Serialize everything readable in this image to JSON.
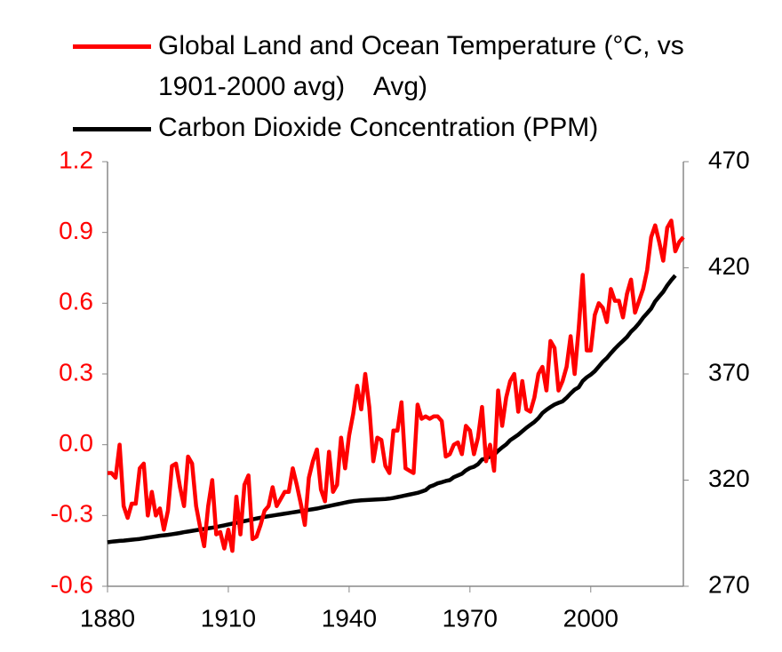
{
  "chart_data": {
    "type": "line",
    "x": [
      1880,
      1881,
      1882,
      1883,
      1884,
      1885,
      1886,
      1887,
      1888,
      1889,
      1890,
      1891,
      1892,
      1893,
      1894,
      1895,
      1896,
      1897,
      1898,
      1899,
      1900,
      1901,
      1902,
      1903,
      1904,
      1905,
      1906,
      1907,
      1908,
      1909,
      1910,
      1911,
      1912,
      1913,
      1914,
      1915,
      1916,
      1917,
      1918,
      1919,
      1920,
      1921,
      1922,
      1923,
      1924,
      1925,
      1926,
      1927,
      1928,
      1929,
      1930,
      1931,
      1932,
      1933,
      1934,
      1935,
      1936,
      1937,
      1938,
      1939,
      1940,
      1941,
      1942,
      1943,
      1944,
      1945,
      1946,
      1947,
      1948,
      1949,
      1950,
      1951,
      1952,
      1953,
      1954,
      1955,
      1956,
      1957,
      1958,
      1959,
      1960,
      1961,
      1962,
      1963,
      1964,
      1965,
      1966,
      1967,
      1968,
      1969,
      1970,
      1971,
      1972,
      1973,
      1974,
      1975,
      1976,
      1977,
      1978,
      1979,
      1980,
      1981,
      1982,
      1983,
      1984,
      1985,
      1986,
      1987,
      1988,
      1989,
      1990,
      1991,
      1992,
      1993,
      1994,
      1995,
      1996,
      1997,
      1998,
      1999,
      2000,
      2001,
      2002,
      2003,
      2004,
      2005,
      2006,
      2007,
      2008,
      2009,
      2010,
      2011,
      2012,
      2013,
      2014,
      2015,
      2016,
      2017,
      2018,
      2019,
      2020,
      2021,
      2022,
      2023
    ],
    "series": [
      {
        "name": "Global Land and Ocean Temperature (°C, vs 1901-2000 avg)    Avg)",
        "color": "#ff0000",
        "axis": "y",
        "values": [
          -0.12,
          -0.12,
          -0.14,
          0.0,
          -0.26,
          -0.31,
          -0.25,
          -0.25,
          -0.1,
          -0.08,
          -0.3,
          -0.2,
          -0.3,
          -0.27,
          -0.36,
          -0.28,
          -0.09,
          -0.08,
          -0.18,
          -0.26,
          -0.05,
          -0.08,
          -0.26,
          -0.35,
          -0.43,
          -0.26,
          -0.15,
          -0.38,
          -0.37,
          -0.44,
          -0.36,
          -0.45,
          -0.22,
          -0.38,
          -0.17,
          -0.13,
          -0.4,
          -0.39,
          -0.34,
          -0.28,
          -0.26,
          -0.18,
          -0.26,
          -0.23,
          -0.2,
          -0.2,
          -0.1,
          -0.17,
          -0.25,
          -0.34,
          -0.14,
          -0.07,
          -0.02,
          -0.19,
          -0.24,
          -0.03,
          -0.2,
          -0.17,
          0.03,
          -0.1,
          0.04,
          0.13,
          0.25,
          0.15,
          0.3,
          0.16,
          -0.07,
          0.03,
          0.02,
          -0.09,
          -0.12,
          0.06,
          0.06,
          0.18,
          -0.1,
          -0.11,
          -0.12,
          0.17,
          0.11,
          0.12,
          0.11,
          0.12,
          0.12,
          0.1,
          -0.05,
          -0.04,
          0.0,
          0.01,
          -0.04,
          0.08,
          0.06,
          -0.04,
          0.03,
          0.16,
          -0.07,
          0.0,
          -0.11,
          0.23,
          0.08,
          0.2,
          0.27,
          0.3,
          0.14,
          0.27,
          0.15,
          0.14,
          0.2,
          0.3,
          0.33,
          0.23,
          0.44,
          0.41,
          0.23,
          0.27,
          0.33,
          0.46,
          0.3,
          0.49,
          0.72,
          0.4,
          0.4,
          0.55,
          0.6,
          0.58,
          0.52,
          0.66,
          0.61,
          0.61,
          0.54,
          0.64,
          0.7,
          0.56,
          0.61,
          0.66,
          0.74,
          0.88,
          0.93,
          0.86,
          0.78,
          0.92,
          0.95,
          0.82,
          0.86,
          0.88
        ]
      },
      {
        "name": "Carbon Dioxide Concentration (PPM)",
        "color": "#000000",
        "axis": "y2",
        "values": [
          290.7,
          291.0,
          291.2,
          291.4,
          291.5,
          291.7,
          291.9,
          292.1,
          292.3,
          292.6,
          292.9,
          293.2,
          293.5,
          293.8,
          294.0,
          294.2,
          294.5,
          294.8,
          295.1,
          295.5,
          295.8,
          296.1,
          296.4,
          296.7,
          297.0,
          297.3,
          297.6,
          297.9,
          298.3,
          298.7,
          299.1,
          299.5,
          299.9,
          300.3,
          300.7,
          301.1,
          301.5,
          301.9,
          302.3,
          302.7,
          303.0,
          303.3,
          303.6,
          303.9,
          304.2,
          304.5,
          304.8,
          305.1,
          305.4,
          305.7,
          306.0,
          306.3,
          306.6,
          307.0,
          307.4,
          307.8,
          308.2,
          308.6,
          309.0,
          309.4,
          309.8,
          310.1,
          310.3,
          310.5,
          310.6,
          310.7,
          310.8,
          310.9,
          311.0,
          311.1,
          311.3,
          311.6,
          312.0,
          312.4,
          312.8,
          313.2,
          313.6,
          314.0,
          314.6,
          315.3,
          316.9,
          317.6,
          318.5,
          319.0,
          319.6,
          320.0,
          321.4,
          322.2,
          323.0,
          324.6,
          325.7,
          326.3,
          327.5,
          329.7,
          330.2,
          331.1,
          332.0,
          333.8,
          335.4,
          336.8,
          338.8,
          340.1,
          341.4,
          343.0,
          344.6,
          346.0,
          347.4,
          349.2,
          351.6,
          353.1,
          354.4,
          355.6,
          356.4,
          357.1,
          358.8,
          360.8,
          362.6,
          363.7,
          366.7,
          368.4,
          369.7,
          371.3,
          373.5,
          375.8,
          377.5,
          379.8,
          381.9,
          383.8,
          385.6,
          387.4,
          389.9,
          391.7,
          393.9,
          396.5,
          398.6,
          400.8,
          404.2,
          406.5,
          408.7,
          411.7,
          414.2,
          416.4,
          null,
          null
        ]
      }
    ],
    "xlim": [
      1880,
      2023
    ],
    "xticks": [
      1880,
      1910,
      1940,
      1970,
      2000
    ],
    "ylim": [
      -0.6,
      1.2
    ],
    "yticks": [
      -0.6,
      -0.3,
      {
        "value": 0,
        "label": "0.0"
      },
      0.3,
      0.6,
      0.9,
      1.2
    ],
    "y2lim": [
      270,
      470
    ],
    "y2ticks": [
      270,
      320,
      370,
      420,
      470
    ],
    "grid": false,
    "legend": "top"
  }
}
